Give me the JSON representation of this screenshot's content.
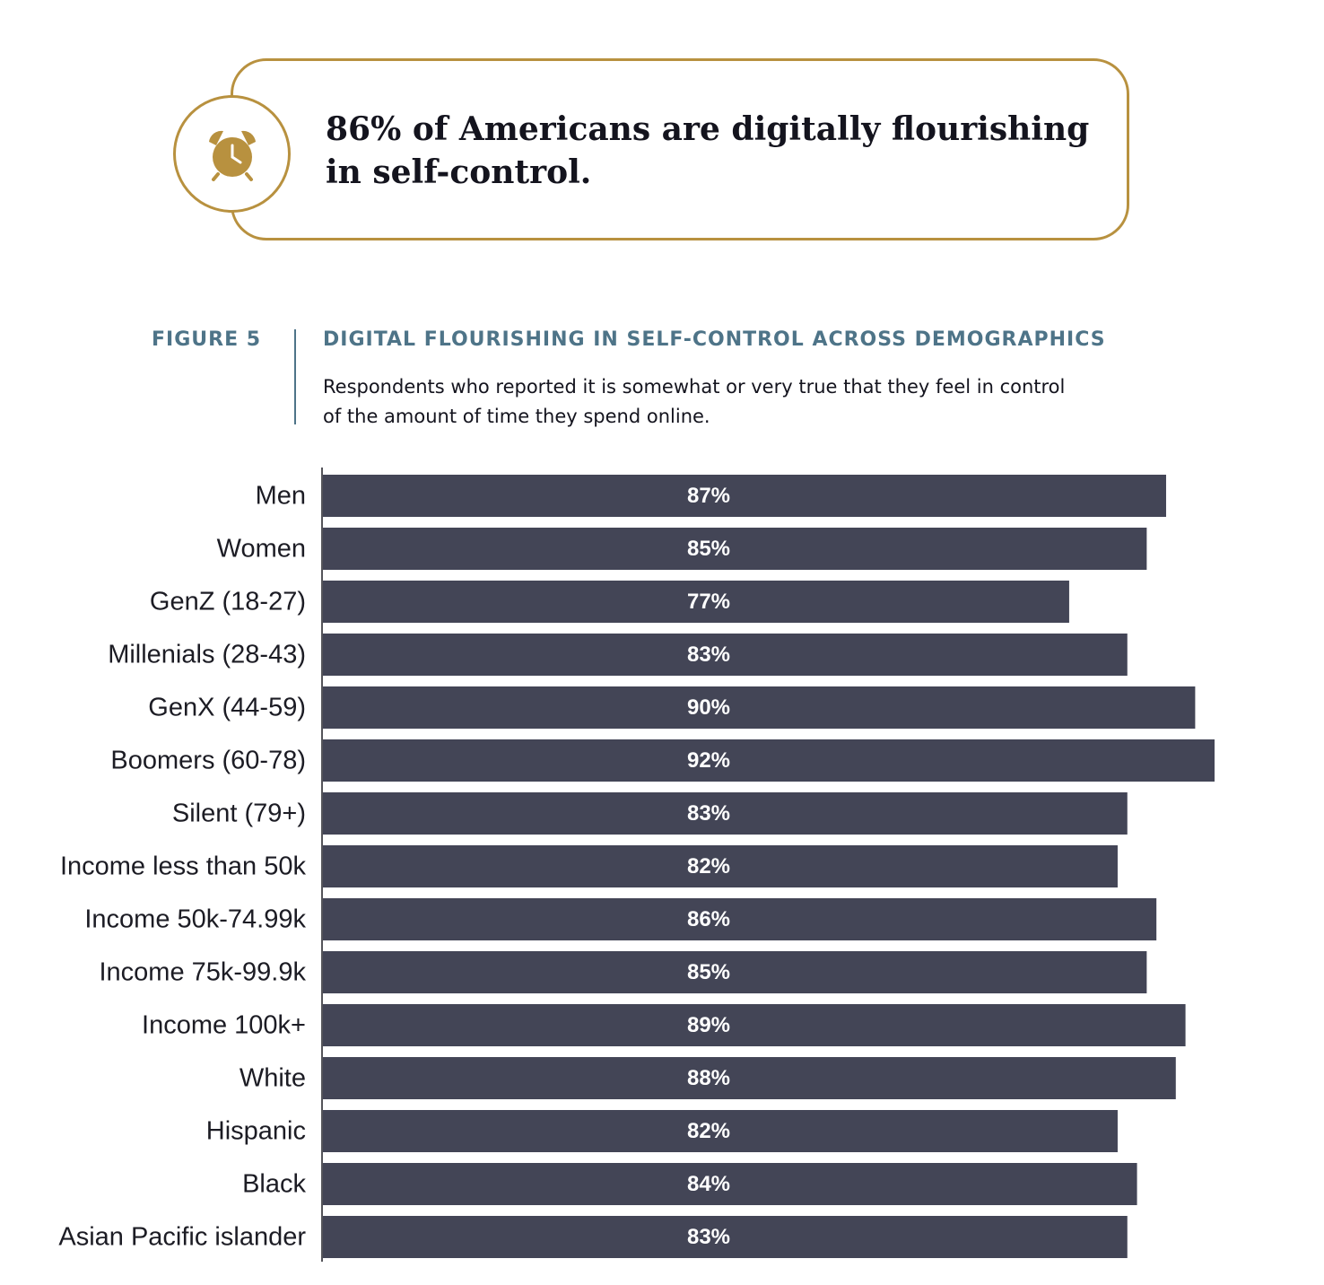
{
  "callout": {
    "line1": "86% of Americans are digitally flourishing",
    "line2": "in self-control.",
    "icon": "alarm-clock-icon",
    "accent_color": "#b8913f"
  },
  "figure": {
    "label": "FIGURE 5",
    "title": "DIGITAL FLOURISHING IN SELF-CONTROL ACROSS DEMOGRAPHICS",
    "subtitle_line1": "Respondents who reported it is somewhat or very true that they feel in control",
    "subtitle_line2": "of the amount of time they spend online.",
    "accent_color": "#4e7488"
  },
  "chart_data": {
    "type": "bar",
    "orientation": "horizontal",
    "categories": [
      "Men",
      "Women",
      "GenZ (18-27)",
      "Millenials (28-43)",
      "GenX (44-59)",
      "Boomers (60-78)",
      "Silent (79+)",
      "Income less than 50k",
      "Income 50k-74.99k",
      "Income  75k-99.9k",
      "Income 100k+",
      "White",
      "Hispanic",
      "Black",
      "Asian Pacific islander"
    ],
    "values": [
      87,
      85,
      77,
      83,
      90,
      92,
      83,
      82,
      86,
      85,
      89,
      88,
      82,
      84,
      83
    ],
    "value_labels": [
      "87%",
      "85%",
      "77%",
      "83%",
      "90%",
      "92%",
      "83%",
      "82%",
      "86%",
      "85%",
      "89%",
      "88%",
      "82%",
      "84%",
      "83%"
    ],
    "bar_color": "#434556",
    "xlim": [
      0,
      92
    ],
    "grid": false
  }
}
